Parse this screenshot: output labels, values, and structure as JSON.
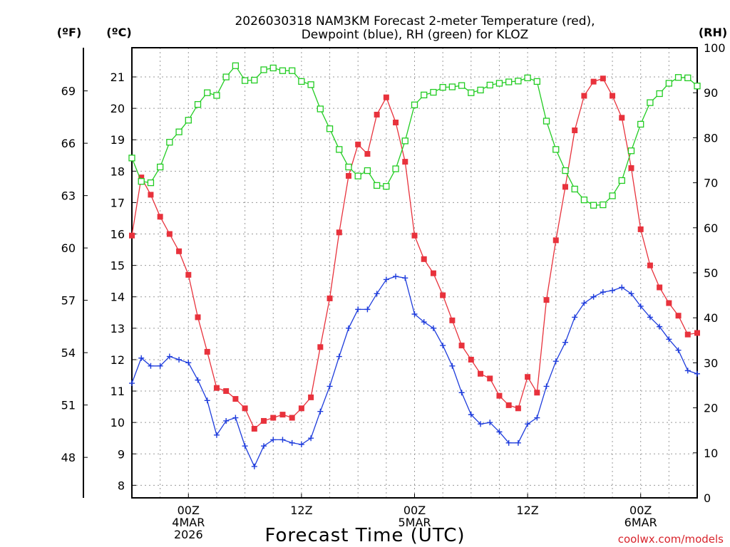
{
  "title_line1": "2026030318 NAM3KM Forecast 2-meter Temperature (red),",
  "title_line2": "Dewpoint (blue), RH (green) for KLOZ",
  "credit": "coolwx.com/models",
  "chart_data": {
    "type": "line",
    "title": "2026030318 NAM3KM Forecast 2-meter Temperature (red), Dewpoint (blue), RH (green) for KLOZ",
    "xlabel": "Forecast Time (UTC)",
    "x_unit": "forecast hour",
    "x_ticks": [
      {
        "hour": 6,
        "lines": [
          "00Z",
          "4MAR",
          "2026"
        ]
      },
      {
        "hour": 18,
        "lines": [
          "12Z"
        ]
      },
      {
        "hour": 30,
        "lines": [
          "00Z",
          "5MAR"
        ]
      },
      {
        "hour": 42,
        "lines": [
          "12Z"
        ]
      },
      {
        "hour": 54,
        "lines": [
          "00Z",
          "6MAR"
        ]
      }
    ],
    "x_grid_hours": [
      3,
      6,
      9,
      12,
      15,
      18,
      21,
      24,
      27,
      30,
      33,
      36,
      39,
      42,
      45,
      48,
      51,
      54,
      57
    ],
    "xlim": [
      0,
      60
    ],
    "axes": {
      "fahrenheit": {
        "label": "(ºF)",
        "ticks": [
          48,
          51,
          54,
          57,
          60,
          63,
          66,
          69
        ]
      },
      "celsius": {
        "label": "(ºC)",
        "ticks": [
          8,
          9,
          10,
          11,
          12,
          13,
          14,
          15,
          16,
          17,
          18,
          19,
          20,
          21
        ],
        "ylim": [
          7.6,
          21.93
        ]
      },
      "rh": {
        "label": "(RH)",
        "ticks": [
          0,
          10,
          20,
          30,
          40,
          50,
          60,
          70,
          80,
          90,
          100
        ],
        "ylim": [
          0,
          100
        ]
      }
    },
    "x": [
      0,
      1,
      2,
      3,
      4,
      5,
      6,
      7,
      8,
      9,
      10,
      11,
      12,
      13,
      14,
      15,
      16,
      17,
      18,
      19,
      20,
      21,
      22,
      23,
      24,
      25,
      26,
      27,
      28,
      29,
      30,
      31,
      32,
      33,
      34,
      35,
      36,
      37,
      38,
      39,
      40,
      41,
      42,
      43,
      44,
      45,
      46,
      47,
      48,
      49,
      50,
      51,
      52,
      53,
      54,
      55,
      56,
      57,
      58,
      59,
      60
    ],
    "series": [
      {
        "name": "Temperature",
        "axis": "celsius",
        "color": "#e8323c",
        "marker": "filled-square",
        "values": [
          15.95,
          17.8,
          17.25,
          16.55,
          16.0,
          15.45,
          14.7,
          13.35,
          12.25,
          11.1,
          11.0,
          10.75,
          10.45,
          9.8,
          10.05,
          10.15,
          10.25,
          10.15,
          10.45,
          10.8,
          12.4,
          13.95,
          16.05,
          17.85,
          18.85,
          18.55,
          19.8,
          20.35,
          19.55,
          18.3,
          15.95,
          15.2,
          14.75,
          14.05,
          13.25,
          12.45,
          12.0,
          11.55,
          11.4,
          10.85,
          10.55,
          10.45,
          11.45,
          10.95,
          13.9,
          15.8,
          17.5,
          19.3,
          20.4,
          20.85,
          20.95,
          20.4,
          19.7,
          18.1,
          16.15,
          15.0,
          14.3,
          13.8,
          13.4,
          12.8,
          12.85
        ]
      },
      {
        "name": "Dewpoint",
        "axis": "celsius",
        "color": "#1e3cdc",
        "marker": "plus",
        "values": [
          11.25,
          12.05,
          11.8,
          11.8,
          12.1,
          12.0,
          11.9,
          11.35,
          10.7,
          9.6,
          10.05,
          10.15,
          9.25,
          8.6,
          9.25,
          9.45,
          9.45,
          9.35,
          9.3,
          9.5,
          10.35,
          11.15,
          12.1,
          13.0,
          13.6,
          13.6,
          14.1,
          14.55,
          14.65,
          14.6,
          13.45,
          13.2,
          13.0,
          12.45,
          11.8,
          10.95,
          10.25,
          9.95,
          10.0,
          9.7,
          9.35,
          9.35,
          9.95,
          10.15,
          11.15,
          11.95,
          12.55,
          13.35,
          13.8,
          14.0,
          14.15,
          14.2,
          14.3,
          14.1,
          13.7,
          13.35,
          13.05,
          12.65,
          12.3,
          11.65,
          11.55
        ]
      },
      {
        "name": "Relative Humidity",
        "axis": "rh",
        "color": "#22cc22",
        "marker": "open-square",
        "values": [
          75.5,
          70.3,
          70.0,
          73.5,
          79.0,
          81.3,
          83.9,
          87.4,
          90.0,
          89.4,
          93.5,
          96.0,
          92.7,
          92.8,
          95.1,
          95.5,
          94.9,
          94.9,
          92.5,
          91.8,
          86.4,
          82.0,
          77.4,
          73.5,
          71.5,
          72.7,
          69.4,
          69.2,
          73.1,
          79.3,
          87.3,
          89.5,
          90.1,
          91.2,
          91.3,
          91.6,
          90.0,
          90.6,
          91.7,
          92.1,
          92.4,
          92.6,
          93.3,
          92.5,
          83.7,
          77.4,
          72.7,
          68.6,
          66.2,
          65.0,
          65.1,
          67.1,
          70.5,
          77.1,
          83.0,
          87.8,
          89.8,
          92.1,
          93.4,
          93.3,
          91.5
        ]
      }
    ]
  }
}
